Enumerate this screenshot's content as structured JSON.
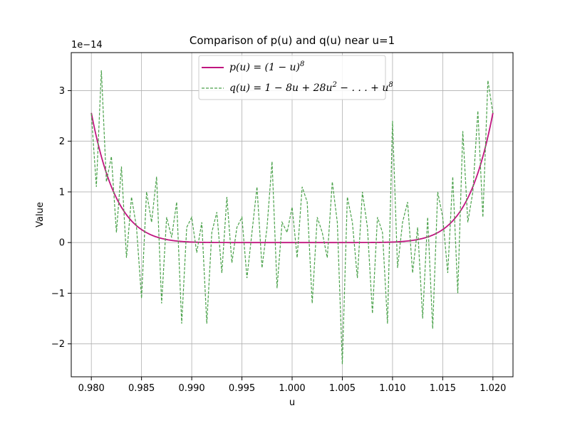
{
  "chart_data": {
    "type": "line",
    "title": "Comparison of p(u) and q(u) near u=1",
    "xlabel": "u",
    "ylabel": "Value",
    "y_offset_label": "1e−14",
    "xlim": [
      0.978,
      1.022
    ],
    "ylim": [
      -2.65,
      3.75
    ],
    "y_scale_factor": 1e-14,
    "xticks": [
      0.98,
      0.985,
      0.99,
      0.995,
      1.0,
      1.005,
      1.01,
      1.015,
      1.02
    ],
    "xtick_labels": [
      "0.980",
      "0.985",
      "0.990",
      "0.995",
      "1.000",
      "1.005",
      "1.010",
      "1.015",
      "1.020"
    ],
    "yticks": [
      -2,
      -1,
      0,
      1,
      2,
      3
    ],
    "ytick_labels": [
      "−2",
      "−1",
      "0",
      "1",
      "2",
      "3"
    ],
    "grid": true,
    "legend_position": "upper center",
    "series": [
      {
        "name": "p(u) = (1 − u)^8",
        "color": "#c0157f",
        "style": "solid",
        "formula": "(1-u)^8",
        "x_range": [
          0.98,
          1.02
        ],
        "points": 400
      },
      {
        "name": "q(u) = 1 − 8u + 28u^2 − . . . + u^8",
        "color": "#4aa14a",
        "style": "dashed",
        "note": "expanded form; shows floating-point noise of roughly ±2e-14 around p(u)",
        "x": [
          0.98,
          0.9805,
          0.981,
          0.9815,
          0.982,
          0.9825,
          0.983,
          0.9835,
          0.984,
          0.9845,
          0.985,
          0.9855,
          0.986,
          0.9865,
          0.987,
          0.9875,
          0.988,
          0.9885,
          0.989,
          0.9895,
          0.99,
          0.9905,
          0.991,
          0.9915,
          0.992,
          0.9925,
          0.993,
          0.9935,
          0.994,
          0.9945,
          0.995,
          0.9955,
          0.996,
          0.9965,
          0.997,
          0.9975,
          0.998,
          0.9985,
          0.999,
          0.9995,
          1.0,
          1.0005,
          1.001,
          1.0015,
          1.002,
          1.0025,
          1.003,
          1.0035,
          1.004,
          1.0045,
          1.005,
          1.0055,
          1.006,
          1.0065,
          1.007,
          1.0075,
          1.008,
          1.0085,
          1.009,
          1.0095,
          1.01,
          1.0105,
          1.011,
          1.0115,
          1.012,
          1.0125,
          1.013,
          1.0135,
          1.014,
          1.0145,
          1.015,
          1.0155,
          1.016,
          1.0165,
          1.017,
          1.0175,
          1.018,
          1.0185,
          1.019,
          1.0195,
          1.02
        ],
        "values": [
          2.55,
          1.1,
          3.4,
          1.2,
          1.7,
          0.2,
          1.5,
          -0.3,
          0.9,
          0.3,
          -1.1,
          1.0,
          0.4,
          1.3,
          -1.2,
          0.5,
          0.1,
          0.8,
          -1.6,
          0.3,
          0.5,
          -0.2,
          0.4,
          -1.6,
          0.2,
          0.6,
          -0.6,
          0.9,
          -0.4,
          0.3,
          0.5,
          -0.7,
          0.2,
          1.1,
          -0.5,
          0.3,
          1.6,
          -0.9,
          0.4,
          0.2,
          0.7,
          -0.3,
          1.1,
          0.8,
          -1.2,
          0.5,
          0.2,
          -0.3,
          1.2,
          0.4,
          -2.4,
          0.9,
          0.4,
          -0.7,
          1.0,
          0.3,
          -1.4,
          0.5,
          0.2,
          -1.6,
          2.4,
          -0.5,
          0.4,
          0.8,
          -0.6,
          0.3,
          -1.5,
          0.5,
          -1.7,
          1.0,
          0.5,
          -0.6,
          1.3,
          -1.0,
          2.2,
          0.4,
          1.0,
          2.6,
          0.5,
          3.2,
          2.55
        ]
      }
    ]
  }
}
